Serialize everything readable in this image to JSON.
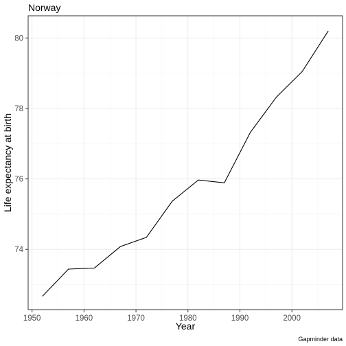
{
  "chart_data": {
    "type": "line",
    "title": "Norway",
    "xlabel": "Year",
    "ylabel": "Life expectancy at birth",
    "caption": "Gapminder data",
    "xlim": [
      1949.25,
      2009.75
    ],
    "ylim": [
      72.29,
      80.63
    ],
    "x_ticks": [
      1950,
      1960,
      1970,
      1980,
      1990,
      2000
    ],
    "y_ticks": [
      74,
      76,
      78,
      80
    ],
    "grid": true,
    "series": [
      {
        "x": [
          1952,
          1957,
          1962,
          1967,
          1972,
          1977,
          1982,
          1987,
          1992,
          1997,
          2002,
          2007
        ],
        "y": [
          72.67,
          73.44,
          73.47,
          74.08,
          74.34,
          75.37,
          75.97,
          75.89,
          77.32,
          78.32,
          79.05,
          80.2
        ]
      }
    ]
  }
}
